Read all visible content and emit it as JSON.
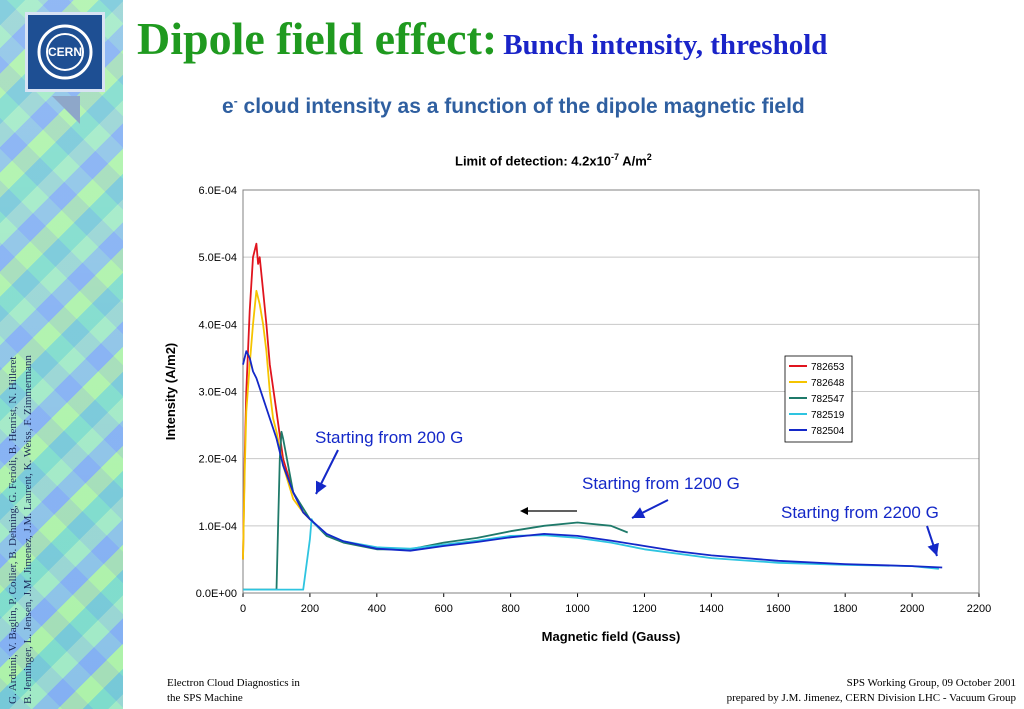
{
  "slide": {
    "title_main": "Dipole field effect:",
    "title_sub": "Bunch intensity, threshold",
    "subtitle_e": "e",
    "subtitle_sup": "-",
    "subtitle_rest": " cloud intensity as a function of the dipole magnetic field",
    "authors_line1": "G. Arduini, V. Baglin, P. Collier, B. Dehning, G. Ferioli, B. Henrist, N. Hilleret",
    "authors_line2": "B. Jenninger, L. Jensen, J.M. Jimenez, J.M. Laurent, K. Weiss, F. Zimmermann",
    "footer_left_1": "Electron Cloud Diagnostics in",
    "footer_left_2": "the SPS Machine",
    "footer_right_1": "SPS Working Group, 09 October 2001",
    "footer_right_2": "prepared by J.M. Jimenez, CERN Division LHC - Vacuum Group",
    "logo_text": "CERN"
  },
  "chart_data": {
    "type": "line",
    "title_pre": "Limit of detection: 4.2x10",
    "title_exp": "-7",
    "title_mid": " A/m",
    "title_exp2": "2",
    "xlabel": "Magnetic field (Gauss)",
    "ylabel": "Intensity (A/m2)",
    "xlim": [
      0,
      2200
    ],
    "ylim": [
      0,
      0.0006
    ],
    "x_ticks": [
      "0",
      "200",
      "400",
      "600",
      "800",
      "1000",
      "1200",
      "1400",
      "1600",
      "1800",
      "2000",
      "2200"
    ],
    "y_ticks": [
      "0.0E+00",
      "1.0E-04",
      "2.0E-04",
      "3.0E-04",
      "4.0E-04",
      "5.0E-04",
      "6.0E-04"
    ],
    "grid": "horizontal",
    "legend_position": "right",
    "series": [
      {
        "name": "782653",
        "color": "#e0141e",
        "x": [
          0,
          5,
          10,
          20,
          30,
          40,
          45,
          50,
          60,
          70,
          80,
          100,
          120,
          150,
          180,
          200
        ],
        "y": [
          5e-05,
          0.0002,
          0.0003,
          0.00042,
          0.0005,
          0.00052,
          0.00049,
          0.0005,
          0.00045,
          0.0004,
          0.00034,
          0.00027,
          0.0002,
          0.00015,
          0.00012,
          0.00011
        ]
      },
      {
        "name": "782648",
        "color": "#f5c400",
        "x": [
          0,
          5,
          10,
          20,
          30,
          40,
          50,
          60,
          70,
          80,
          90,
          100,
          120,
          150,
          180,
          200
        ],
        "y": [
          5e-05,
          0.00018,
          0.00027,
          0.00034,
          0.0004,
          0.00045,
          0.00043,
          0.0004,
          0.00036,
          0.0003,
          0.00026,
          0.00024,
          0.00019,
          0.00014,
          0.00012,
          0.00011
        ]
      },
      {
        "name": "782547",
        "color": "#1f7a6a",
        "x": [
          0,
          100,
          105,
          110,
          115,
          120,
          150,
          200,
          250,
          300,
          400,
          500,
          600,
          700,
          800,
          900,
          1000,
          1100,
          1150
        ],
        "y": [
          5e-06,
          5e-06,
          0.0001,
          0.0002,
          0.00024,
          0.00023,
          0.00015,
          0.00011,
          8.5e-05,
          7.5e-05,
          6.5e-05,
          6.5e-05,
          7.5e-05,
          8.2e-05,
          9.2e-05,
          0.0001,
          0.000105,
          0.0001,
          9e-05
        ]
      },
      {
        "name": "782519",
        "color": "#2ec4e0",
        "x": [
          0,
          180,
          200,
          205,
          210,
          220,
          250,
          300,
          400,
          500,
          600,
          700,
          800,
          900,
          1000,
          1100,
          1200,
          1400,
          1600,
          1800,
          2000,
          2080
        ],
        "y": [
          5e-06,
          5e-06,
          8e-05,
          0.00011,
          0.000105,
          0.0001,
          8.8e-05,
          7.7e-05,
          6.8e-05,
          6.6e-05,
          7.2e-05,
          7.8e-05,
          8.5e-05,
          8.6e-05,
          8.2e-05,
          7.5e-05,
          6.5e-05,
          5.2e-05,
          4.5e-05,
          4.2e-05,
          4e-05,
          3.6e-05
        ]
      },
      {
        "name": "782504",
        "color": "#1428c8",
        "x": [
          0,
          10,
          20,
          30,
          40,
          60,
          80,
          100,
          120,
          150,
          180,
          200,
          250,
          300,
          400,
          500,
          600,
          700,
          800,
          900,
          1000,
          1100,
          1200,
          1300,
          1400,
          1600,
          1800,
          2000,
          2090
        ],
        "y": [
          0.00034,
          0.00036,
          0.00035,
          0.00033,
          0.00032,
          0.00029,
          0.00026,
          0.00023,
          0.00019,
          0.00015,
          0.00012,
          0.00011,
          8.8e-05,
          7.7e-05,
          6.6e-05,
          6.3e-05,
          7e-05,
          7.6e-05,
          8.3e-05,
          8.8e-05,
          8.5e-05,
          7.8e-05,
          7e-05,
          6.2e-05,
          5.6e-05,
          4.8e-05,
          4.3e-05,
          4e-05,
          3.8e-05
        ]
      }
    ],
    "annotations": [
      {
        "text": "Starting from 200 G"
      },
      {
        "text": "Starting from 1200 G"
      },
      {
        "text": "Starting from 2200 G"
      }
    ]
  }
}
